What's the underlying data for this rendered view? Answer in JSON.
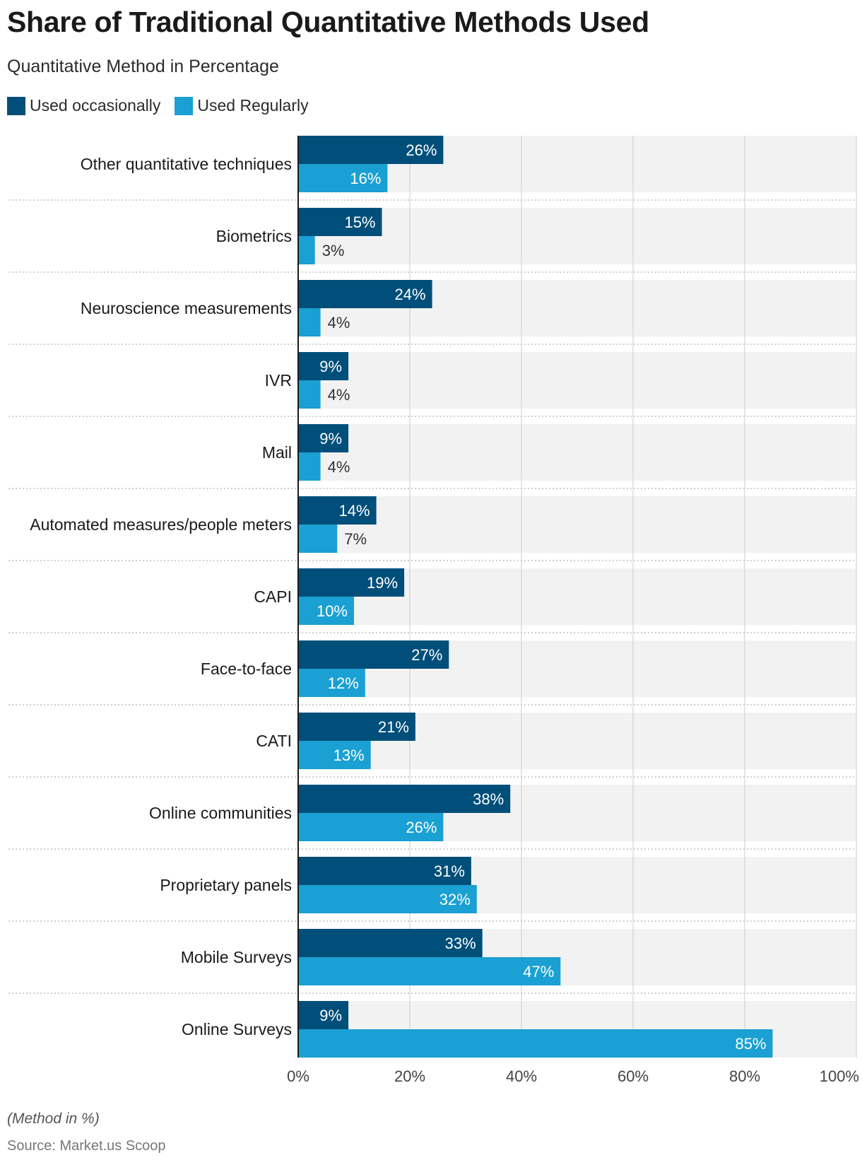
{
  "title": "Share of Traditional Quantitative Methods Used",
  "subtitle": "Quantitative Method in Percentage",
  "footer": {
    "note": "(Method in %)",
    "source": "Source: Market.us Scoop"
  },
  "colors": {
    "occasional": "#004f7a",
    "regular": "#1aa0d3",
    "band": "#f2f2f2",
    "grid": "#cccccc",
    "axis": "#1a1a1a"
  },
  "chart_data": {
    "type": "bar",
    "orientation": "horizontal",
    "categories": [
      "Other quantitative techniques",
      "Biometrics",
      "Neuroscience measurements",
      "IVR",
      "Mail",
      "Automated measures/people meters",
      "CAPI",
      "Face-to-face",
      "CATI",
      "Online communities",
      "Proprietary panels",
      "Mobile Surveys",
      "Online Surveys"
    ],
    "series": [
      {
        "name": "Used occasionally",
        "values": [
          26,
          15,
          24,
          9,
          9,
          14,
          19,
          27,
          21,
          38,
          31,
          33,
          9
        ]
      },
      {
        "name": "Used Regularly",
        "values": [
          16,
          3,
          4,
          4,
          4,
          7,
          10,
          12,
          13,
          26,
          32,
          47,
          85
        ]
      }
    ],
    "xlim": [
      0,
      100
    ],
    "xticks": [
      "0%",
      "20%",
      "40%",
      "60%",
      "80%",
      "100%"
    ],
    "xtick_values": [
      0,
      20,
      40,
      60,
      80,
      100
    ],
    "value_suffix": "%",
    "grid": true,
    "legend_position": "top-left"
  }
}
